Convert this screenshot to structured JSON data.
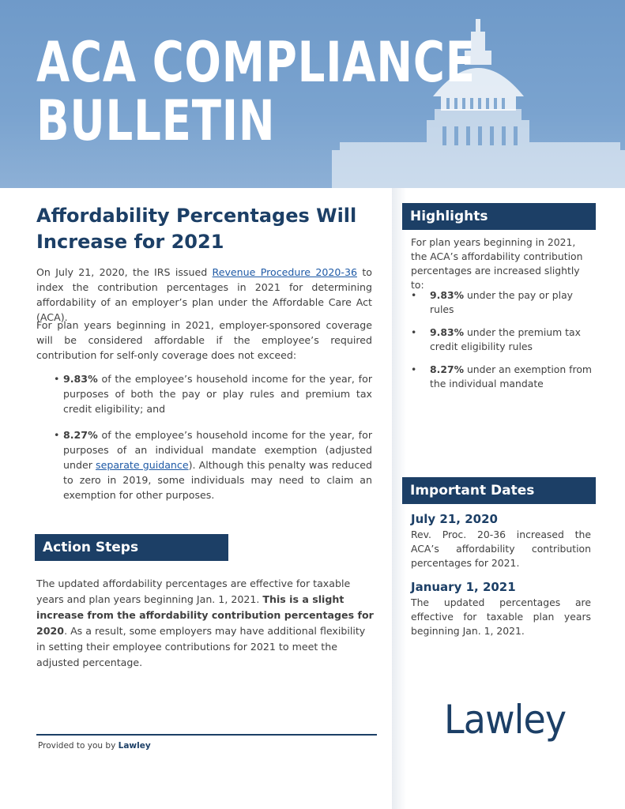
{
  "banner": {
    "title_line1": "ACA COMPLIANCE",
    "title_line2": "BULLETIN"
  },
  "article": {
    "title": "Affordability Percentages Will Increase for 2021",
    "p1_before": "On July 21, 2020, the IRS issued ",
    "p1_link": "Revenue Procedure 2020-36",
    "p1_after": " to index the contribution percentages in 2021 for determining affordability of an employer’s plan under the Affordable Care Act (ACA).",
    "p2": "For plan years beginning in 2021, employer-sponsored coverage will be considered affordable if the employee’s required contribution for self-only coverage does not exceed:",
    "bullet1_bold": "9.83%",
    "bullet1_text": " of the employee’s household income for the year, for purposes of both the pay or play rules and premium tax credit eligibility; and",
    "bullet2_bold": "8.27%",
    "bullet2_before": " of the employee’s household income for the year, for purposes of an individual mandate exemption (adjusted under ",
    "bullet2_link": "separate guidance",
    "bullet2_after": "). Although this penalty was reduced to zero in 2019, some individuals may need to claim an exemption for other purposes."
  },
  "action_steps": {
    "heading": "Action Steps",
    "text_before": "The updated affordability percentages are effective for taxable years and plan years beginning Jan. 1, 2021. ",
    "text_bold": "This is a slight increase from the affordability contribution percentages for 2020",
    "text_after": ". As a result, some employers may have additional flexibility in setting their employee contributions for 2021 to meet the adjusted percentage."
  },
  "footer": {
    "prefix": "Provided to you by ",
    "brand": "Lawley"
  },
  "highlights": {
    "heading": "Highlights",
    "intro": "For plan years beginning in 2021, the ACA’s affordability contribution percentages are increased slightly to:",
    "items": [
      {
        "bold": "9.83%",
        "text": " under the pay or play rules"
      },
      {
        "bold": "9.83%",
        "text": " under the premium tax credit eligibility rules"
      },
      {
        "bold": "8.27%",
        "text": " under an exemption from the individual mandate"
      }
    ]
  },
  "important_dates": {
    "heading": "Important Dates",
    "items": [
      {
        "date": "July 21, 2020",
        "text": "Rev. Proc. 20-36 increased the ACA’s affordability contribution percentages for 2021."
      },
      {
        "date": "January 1, 2021",
        "text": "The updated percentages are effective for taxable plan years beginning Jan. 1, 2021."
      }
    ]
  },
  "logo": {
    "text": "Lawley"
  },
  "colors": {
    "navy": "#1c3f66",
    "banner_blue": "#7aa3cf",
    "link_blue": "#1f5aa6"
  }
}
